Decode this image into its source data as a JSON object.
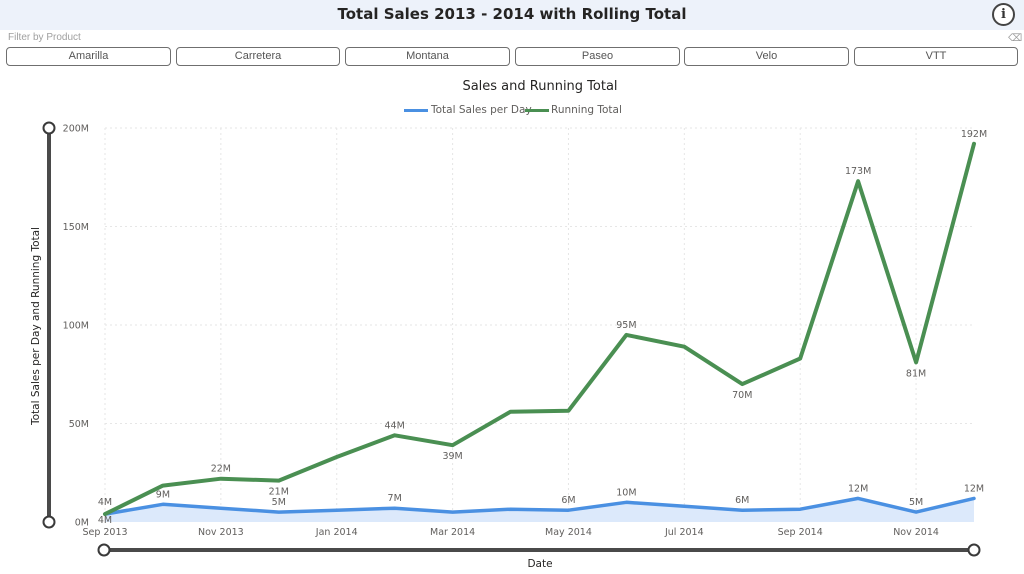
{
  "header": {
    "title": "Total Sales 2013 - 2014 with Rolling Total",
    "info_icon": "info-circle-icon"
  },
  "slicer": {
    "label": "Filter by Product",
    "clear_icon": "eraser-icon",
    "items": [
      "Amarilla",
      "Carretera",
      "Montana",
      "Paseo",
      "Velo",
      "VTT"
    ]
  },
  "colors": {
    "sales": "#4a90e2",
    "running": "#4a8f52",
    "area": "#dce9fb"
  },
  "chart_data": {
    "type": "line",
    "title": "Sales and Running Total",
    "xlabel": "Date",
    "ylabel": "Total Sales per Day and Running Total",
    "legend": "top-center",
    "grid": true,
    "x_ticks": [
      "Sep 2013",
      "Nov 2013",
      "Jan 2014",
      "Mar 2014",
      "May 2014",
      "Jul 2014",
      "Sep 2014",
      "Nov 2014"
    ],
    "y_ticks": [
      "0M",
      "50M",
      "100M",
      "150M",
      "200M"
    ],
    "ylim": [
      0,
      200
    ],
    "x": [
      "2013-09-01",
      "2013-10-01",
      "2013-11-01",
      "2013-12-01",
      "2014-01-01",
      "2014-02-01",
      "2014-03-01",
      "2014-04-01",
      "2014-05-01",
      "2014-06-01",
      "2014-07-01",
      "2014-08-01",
      "2014-09-01",
      "2014-10-01",
      "2014-11-01",
      "2014-12-01"
    ],
    "series": [
      {
        "name": "Total Sales per Day",
        "values": [
          4,
          9,
          7,
          5,
          6,
          7,
          5,
          6.5,
          6,
          10,
          8,
          6,
          6.5,
          12,
          5,
          12
        ],
        "labels": [
          "4M",
          "9M",
          "",
          "5M",
          "",
          "7M",
          "",
          "",
          "6M",
          "10M",
          "",
          "6M",
          "",
          "12M",
          "5M",
          "12M"
        ]
      },
      {
        "name": "Running Total",
        "values": [
          4,
          18.5,
          22,
          21,
          33,
          44,
          39,
          56,
          56.5,
          95,
          89,
          70,
          83,
          173,
          81,
          192
        ],
        "labels": [
          "4M",
          "",
          "22M",
          "21M",
          "",
          "44M",
          "39M",
          "",
          "",
          "95M",
          "",
          "70M",
          "",
          "173M",
          "81M",
          "192M"
        ]
      }
    ]
  }
}
